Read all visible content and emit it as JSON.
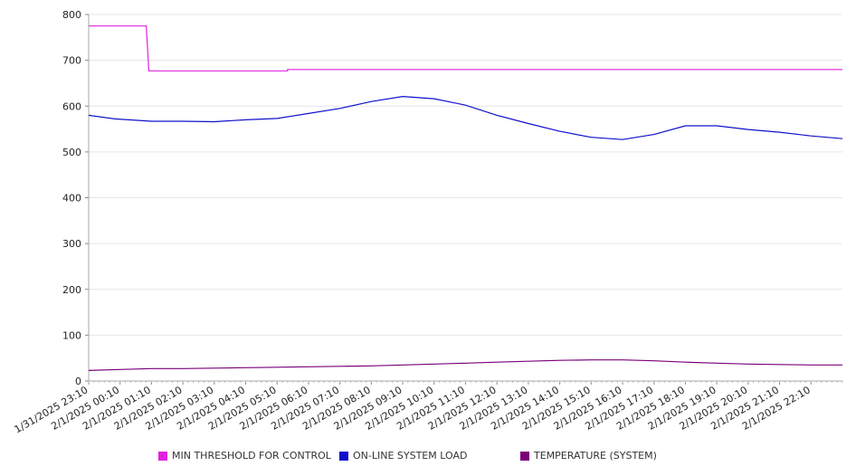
{
  "chart_data": {
    "type": "line",
    "title": "",
    "xlabel": "",
    "ylabel": "",
    "ylim": [
      0,
      800
    ],
    "yticks": [
      0,
      100,
      200,
      300,
      400,
      500,
      600,
      700,
      800
    ],
    "grid": true,
    "legend_position": "bottom",
    "xtick_labels": [
      "1/31/2025 23:10",
      "2/1/2025 00:10",
      "2/1/2025 01:10",
      "2/1/2025 02:10",
      "2/1/2025 03:10",
      "2/1/2025 04:10",
      "2/1/2025 05:10",
      "2/1/2025 06:10",
      "2/1/2025 07:10",
      "2/1/2025 08:10",
      "2/1/2025 09:10",
      "2/1/2025 10:10",
      "2/1/2025 11:10",
      "2/1/2025 12:10",
      "2/1/2025 13:10",
      "2/1/2025 14:10",
      "2/1/2025 15:10",
      "2/1/2025 16:10",
      "2/1/2025 17:10",
      "2/1/2025 18:10",
      "2/1/2025 19:10",
      "2/1/2025 20:10",
      "2/1/2025 21:10",
      "2/1/2025 22:10"
    ],
    "x_range": [
      "1/31/2025 23:10",
      "2/1/2025 23:10"
    ],
    "series": [
      {
        "name": "MIN THRESHOLD FOR CONTROL",
        "color": "#e020e0",
        "points": [
          [
            "1/31/2025 23:10",
            775
          ],
          [
            "2/1/2025 01:00",
            775
          ],
          [
            "2/1/2025 01:05",
            677
          ],
          [
            "2/1/2025 05:30",
            677
          ],
          [
            "2/1/2025 05:30",
            680
          ],
          [
            "2/1/2025 23:10",
            680
          ]
        ]
      },
      {
        "name": "ON-LINE SYSTEM LOAD",
        "color": "#1010cc",
        "points": [
          [
            "1/31/2025 23:10",
            580
          ],
          [
            "2/1/2025 00:00",
            572
          ],
          [
            "2/1/2025 01:10",
            567
          ],
          [
            "2/1/2025 02:10",
            567
          ],
          [
            "2/1/2025 03:10",
            566
          ],
          [
            "2/1/2025 04:10",
            570
          ],
          [
            "2/1/2025 05:10",
            573
          ],
          [
            "2/1/2025 06:10",
            584
          ],
          [
            "2/1/2025 07:10",
            595
          ],
          [
            "2/1/2025 08:10",
            610
          ],
          [
            "2/1/2025 09:10",
            621
          ],
          [
            "2/1/2025 10:10",
            616
          ],
          [
            "2/1/2025 11:10",
            602
          ],
          [
            "2/1/2025 12:10",
            580
          ],
          [
            "2/1/2025 13:10",
            562
          ],
          [
            "2/1/2025 14:10",
            545
          ],
          [
            "2/1/2025 15:10",
            532
          ],
          [
            "2/1/2025 16:10",
            527
          ],
          [
            "2/1/2025 17:10",
            538
          ],
          [
            "2/1/2025 18:10",
            557
          ],
          [
            "2/1/2025 19:10",
            557
          ],
          [
            "2/1/2025 20:10",
            549
          ],
          [
            "2/1/2025 21:10",
            543
          ],
          [
            "2/1/2025 22:10",
            535
          ],
          [
            "2/1/2025 23:10",
            529
          ]
        ]
      },
      {
        "name": "TEMPERATURE (SYSTEM)",
        "color": "#7a007a",
        "points": [
          [
            "1/31/2025 23:10",
            23
          ],
          [
            "2/1/2025 00:10",
            25
          ],
          [
            "2/1/2025 01:10",
            27
          ],
          [
            "2/1/2025 02:10",
            27
          ],
          [
            "2/1/2025 03:10",
            28
          ],
          [
            "2/1/2025 04:10",
            29
          ],
          [
            "2/1/2025 05:10",
            30
          ],
          [
            "2/1/2025 06:10",
            31
          ],
          [
            "2/1/2025 07:10",
            32
          ],
          [
            "2/1/2025 08:10",
            33
          ],
          [
            "2/1/2025 09:10",
            35
          ],
          [
            "2/1/2025 10:10",
            37
          ],
          [
            "2/1/2025 11:10",
            39
          ],
          [
            "2/1/2025 12:10",
            41
          ],
          [
            "2/1/2025 13:10",
            43
          ],
          [
            "2/1/2025 14:10",
            45
          ],
          [
            "2/1/2025 15:10",
            46
          ],
          [
            "2/1/2025 16:10",
            46
          ],
          [
            "2/1/2025 17:10",
            44
          ],
          [
            "2/1/2025 18:10",
            41
          ],
          [
            "2/1/2025 19:10",
            39
          ],
          [
            "2/1/2025 20:10",
            37
          ],
          [
            "2/1/2025 21:10",
            36
          ],
          [
            "2/1/2025 22:10",
            35
          ],
          [
            "2/1/2025 23:10",
            35
          ]
        ]
      }
    ]
  }
}
